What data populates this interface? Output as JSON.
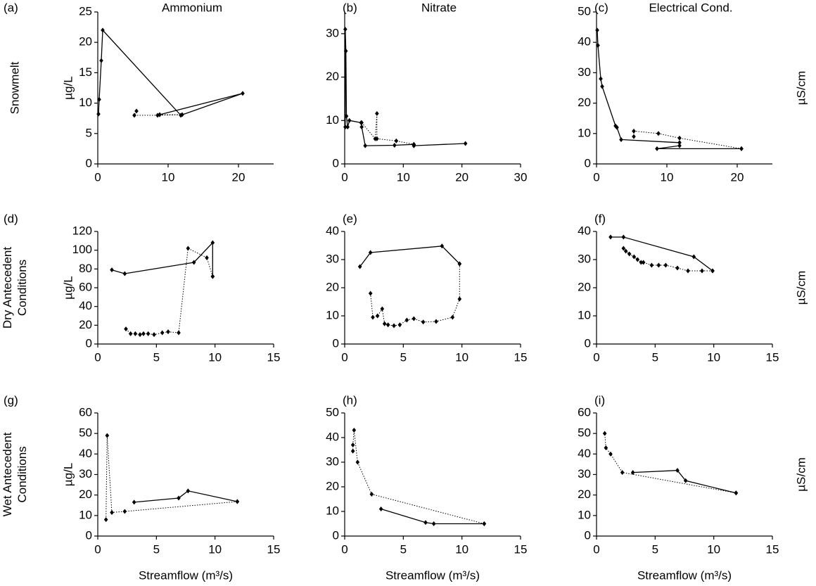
{
  "row_labels": [
    [
      "Snowmelt"
    ],
    [
      "Dry Antecedent",
      "Conditions"
    ],
    [
      "Wet Antecedent",
      "Conditions"
    ]
  ],
  "chart_data": [
    {
      "type": "line",
      "panel": "(a)",
      "title": "Ammonium",
      "ylabel": "µg/L",
      "xlim": [
        0,
        25
      ],
      "xticks": [
        0,
        10,
        20
      ],
      "ylim": [
        0,
        25
      ],
      "yticks": [
        0,
        5,
        10,
        15,
        20,
        25
      ],
      "series": [
        {
          "x": [
            0.1,
            0.2,
            0.5,
            0.7,
            11.8,
            20.6,
            8.8
          ],
          "values": [
            8.2,
            10.6,
            17,
            22,
            8,
            11.6,
            8.1
          ],
          "color": "#000000",
          "line": "solid"
        },
        {
          "x": [
            8.8,
            12,
            8.5,
            5.2,
            5.5
          ],
          "values": [
            8.1,
            8.1,
            8,
            8,
            8.7
          ],
          "color": "#000000",
          "line": "dotted"
        }
      ]
    },
    {
      "type": "line",
      "panel": "(b)",
      "title": "Nitrate",
      "xlim": [
        0,
        30
      ],
      "xticks": [
        0,
        10,
        20,
        30
      ],
      "ylim": [
        0,
        35
      ],
      "yticks": [
        0,
        10,
        20,
        30
      ],
      "series": [
        {
          "x": [
            0.1,
            0.1,
            0.2,
            0.3,
            0.5,
            0.8,
            2.8,
            2.9,
            3.5,
            8.5,
            11.8,
            11.8,
            20.6
          ],
          "values": [
            8.5,
            31,
            26,
            11,
            8.5,
            10,
            9.5,
            8.5,
            4.2,
            4.3,
            4.5,
            4.2,
            4.7
          ],
          "color": "#000000",
          "line": "solid"
        },
        {
          "x": [
            2.9,
            5.2,
            5.5,
            5.5,
            8.8,
            11.8,
            11.8
          ],
          "values": [
            9.5,
            5.8,
            11.6,
            5.8,
            5.3,
            4.5,
            4.2
          ],
          "color": "#000000",
          "line": "dotted"
        }
      ]
    },
    {
      "type": "line",
      "panel": "(c)",
      "title": "Electrical Cond.",
      "ylabel": "µS/cm",
      "xlim": [
        0,
        25
      ],
      "xticks": [
        0,
        10,
        20
      ],
      "ylim": [
        0,
        50
      ],
      "yticks": [
        0,
        10,
        20,
        30,
        40,
        50
      ],
      "series": [
        {
          "x": [
            0.1,
            0.2,
            0.6,
            0.8,
            2.7,
            2.9,
            3.5,
            11.8,
            11.8,
            8.6,
            20.6
          ],
          "values": [
            44,
            39,
            28,
            25.5,
            12.5,
            12,
            8,
            7,
            6,
            5,
            5
          ],
          "color": "#000000",
          "line": "solid"
        },
        {
          "x": [
            20.6,
            11.8,
            8.8,
            5.3,
            5.3
          ],
          "values": [
            5,
            8.5,
            10,
            10.8,
            9
          ],
          "color": "#000000",
          "line": "dotted"
        }
      ]
    },
    {
      "type": "line",
      "panel": "(d)",
      "ylabel": "µg/L",
      "xlim": [
        0,
        15
      ],
      "xticks": [
        0,
        5,
        10,
        15
      ],
      "ylim": [
        0,
        120
      ],
      "yticks": [
        0,
        20,
        40,
        60,
        80,
        100,
        120
      ],
      "series": [
        {
          "x": [
            1.2,
            2.3,
            8.2,
            9.8,
            9.8
          ],
          "values": [
            79,
            75,
            87,
            108,
            72
          ],
          "color": "#000000",
          "line": "solid"
        },
        {
          "x": [
            9.8,
            9.3,
            7.7,
            6.9,
            6,
            5.5,
            4.8,
            4.3,
            3.9,
            3.6,
            3.2,
            2.8,
            2.4
          ],
          "values": [
            72,
            92,
            102,
            12,
            13,
            12,
            10,
            11,
            11,
            10,
            11,
            11,
            16
          ],
          "color": "#000000",
          "line": "dotted"
        }
      ]
    },
    {
      "type": "line",
      "panel": "(e)",
      "xlim": [
        0,
        15
      ],
      "xticks": [
        0,
        5,
        10,
        15
      ],
      "ylim": [
        0,
        40
      ],
      "yticks": [
        0,
        10,
        20,
        30,
        40
      ],
      "series": [
        {
          "x": [
            1.3,
            2.2,
            8.3,
            9.8
          ],
          "values": [
            27.5,
            32.5,
            34.8,
            28.5
          ],
          "color": "#000000",
          "line": "solid"
        },
        {
          "x": [
            9.8,
            9.8,
            9.2,
            7.8,
            6.7,
            5.9,
            5.3,
            4.7,
            4.2,
            3.7,
            3.4,
            3.2,
            2.8,
            2.4,
            2.2
          ],
          "values": [
            28.5,
            16,
            9.5,
            8,
            7.8,
            9,
            8.5,
            6.8,
            6.5,
            6.8,
            7.2,
            12.5,
            10,
            9.5,
            18
          ],
          "color": "#000000",
          "line": "dotted"
        }
      ]
    },
    {
      "type": "line",
      "panel": "(f)",
      "ylabel": "µS/cm",
      "xlim": [
        0,
        15
      ],
      "xticks": [
        0,
        5,
        10,
        15
      ],
      "ylim": [
        0,
        40
      ],
      "yticks": [
        0,
        10,
        20,
        30,
        40
      ],
      "series": [
        {
          "x": [
            1.2,
            2.3,
            8.3,
            9.9
          ],
          "values": [
            38,
            38,
            31,
            26
          ],
          "color": "#000000",
          "line": "solid"
        },
        {
          "x": [
            9.9,
            9,
            7.8,
            6.9,
            5.9,
            5.3,
            4.7,
            4,
            3.8,
            3.5,
            3.2,
            2.8,
            2.5,
            2.3
          ],
          "values": [
            26,
            26,
            26,
            27,
            28,
            28,
            28,
            29,
            29,
            30,
            31,
            32,
            33,
            34
          ],
          "color": "#000000",
          "line": "dotted"
        }
      ]
    },
    {
      "type": "line",
      "panel": "(g)",
      "ylabel": "µg/L",
      "xlabel": "Streamflow (m³/s)",
      "xlim": [
        0,
        15
      ],
      "xticks": [
        0,
        5,
        10,
        15
      ],
      "ylim": [
        0,
        60
      ],
      "yticks": [
        0,
        10,
        20,
        30,
        40,
        50,
        60
      ],
      "series": [
        {
          "x": [
            3.1,
            6.9,
            7.7,
            11.9
          ],
          "values": [
            16.5,
            18.5,
            22,
            16.8
          ],
          "color": "#000000",
          "line": "solid"
        },
        {
          "x": [
            11.9,
            2.3,
            1.2,
            0.8,
            0.7
          ],
          "values": [
            16.8,
            12,
            11.5,
            49,
            8
          ],
          "color": "#000000",
          "line": "dotted"
        }
      ]
    },
    {
      "type": "line",
      "panel": "(h)",
      "xlabel": "Streamflow (m³/s)",
      "xlim": [
        0,
        15
      ],
      "xticks": [
        0,
        5,
        10,
        15
      ],
      "ylim": [
        0,
        50
      ],
      "yticks": [
        0,
        10,
        20,
        30,
        40,
        50
      ],
      "series": [
        {
          "x": [
            3.1,
            6.9,
            7.6,
            11.9
          ],
          "values": [
            11,
            5.5,
            5,
            5
          ],
          "color": "#000000",
          "line": "solid"
        },
        {
          "x": [
            11.9,
            2.3,
            1.1,
            0.8,
            0.7,
            0.7
          ],
          "values": [
            5,
            17,
            30,
            43,
            37,
            34.5
          ],
          "color": "#000000",
          "line": "dotted"
        }
      ]
    },
    {
      "type": "line",
      "panel": "(i)",
      "ylabel": "µS/cm",
      "xlabel": "Streamflow (m³/s)",
      "xlim": [
        0,
        15
      ],
      "xticks": [
        0,
        5,
        10,
        15
      ],
      "ylim": [
        0,
        60
      ],
      "yticks": [
        0,
        10,
        20,
        30,
        40,
        50,
        60
      ],
      "series": [
        {
          "x": [
            3.1,
            6.9,
            7.6,
            11.9
          ],
          "values": [
            31,
            32,
            27,
            21
          ],
          "color": "#000000",
          "line": "solid"
        },
        {
          "x": [
            11.9,
            2.2,
            1.2,
            0.8,
            0.7
          ],
          "values": [
            21,
            31,
            40,
            43,
            50
          ],
          "color": "#000000",
          "line": "dotted"
        }
      ]
    }
  ]
}
